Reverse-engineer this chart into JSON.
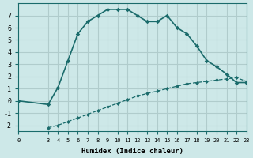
{
  "xlabel": "Humidex (Indice chaleur)",
  "bg_color": "#cde8e8",
  "line_color": "#1a6b6b",
  "grid_color": "#b0cccc",
  "upper_x": [
    0,
    3,
    4,
    5,
    6,
    7,
    8,
    9,
    10,
    11,
    12,
    13,
    14,
    15,
    16,
    17,
    18,
    19,
    20,
    21,
    22,
    23
  ],
  "upper_y": [
    0,
    -0.3,
    1.1,
    3.3,
    5.5,
    6.5,
    7.0,
    7.5,
    7.5,
    7.5,
    7.0,
    6.5,
    6.5,
    7.0,
    6.0,
    5.5,
    4.5,
    3.3,
    2.8,
    2.2,
    1.5,
    1.5
  ],
  "lower_x": [
    3,
    4,
    5,
    6,
    7,
    8,
    9,
    10,
    11,
    12,
    13,
    14,
    15,
    16,
    17,
    18,
    19,
    20,
    21,
    22,
    23
  ],
  "lower_y": [
    -2.2,
    -2.0,
    -1.7,
    -1.4,
    -1.1,
    -0.8,
    -0.5,
    -0.2,
    0.1,
    0.4,
    0.6,
    0.8,
    1.0,
    1.2,
    1.4,
    1.5,
    1.6,
    1.7,
    1.8,
    1.9,
    1.6
  ],
  "xlim": [
    0,
    23
  ],
  "ylim": [
    -2.5,
    8.0
  ],
  "xticks": [
    0,
    3,
    4,
    5,
    6,
    7,
    8,
    9,
    10,
    11,
    12,
    13,
    14,
    15,
    16,
    17,
    18,
    19,
    20,
    21,
    22,
    23
  ],
  "yticks": [
    -2,
    -1,
    0,
    1,
    2,
    3,
    4,
    5,
    6,
    7
  ]
}
